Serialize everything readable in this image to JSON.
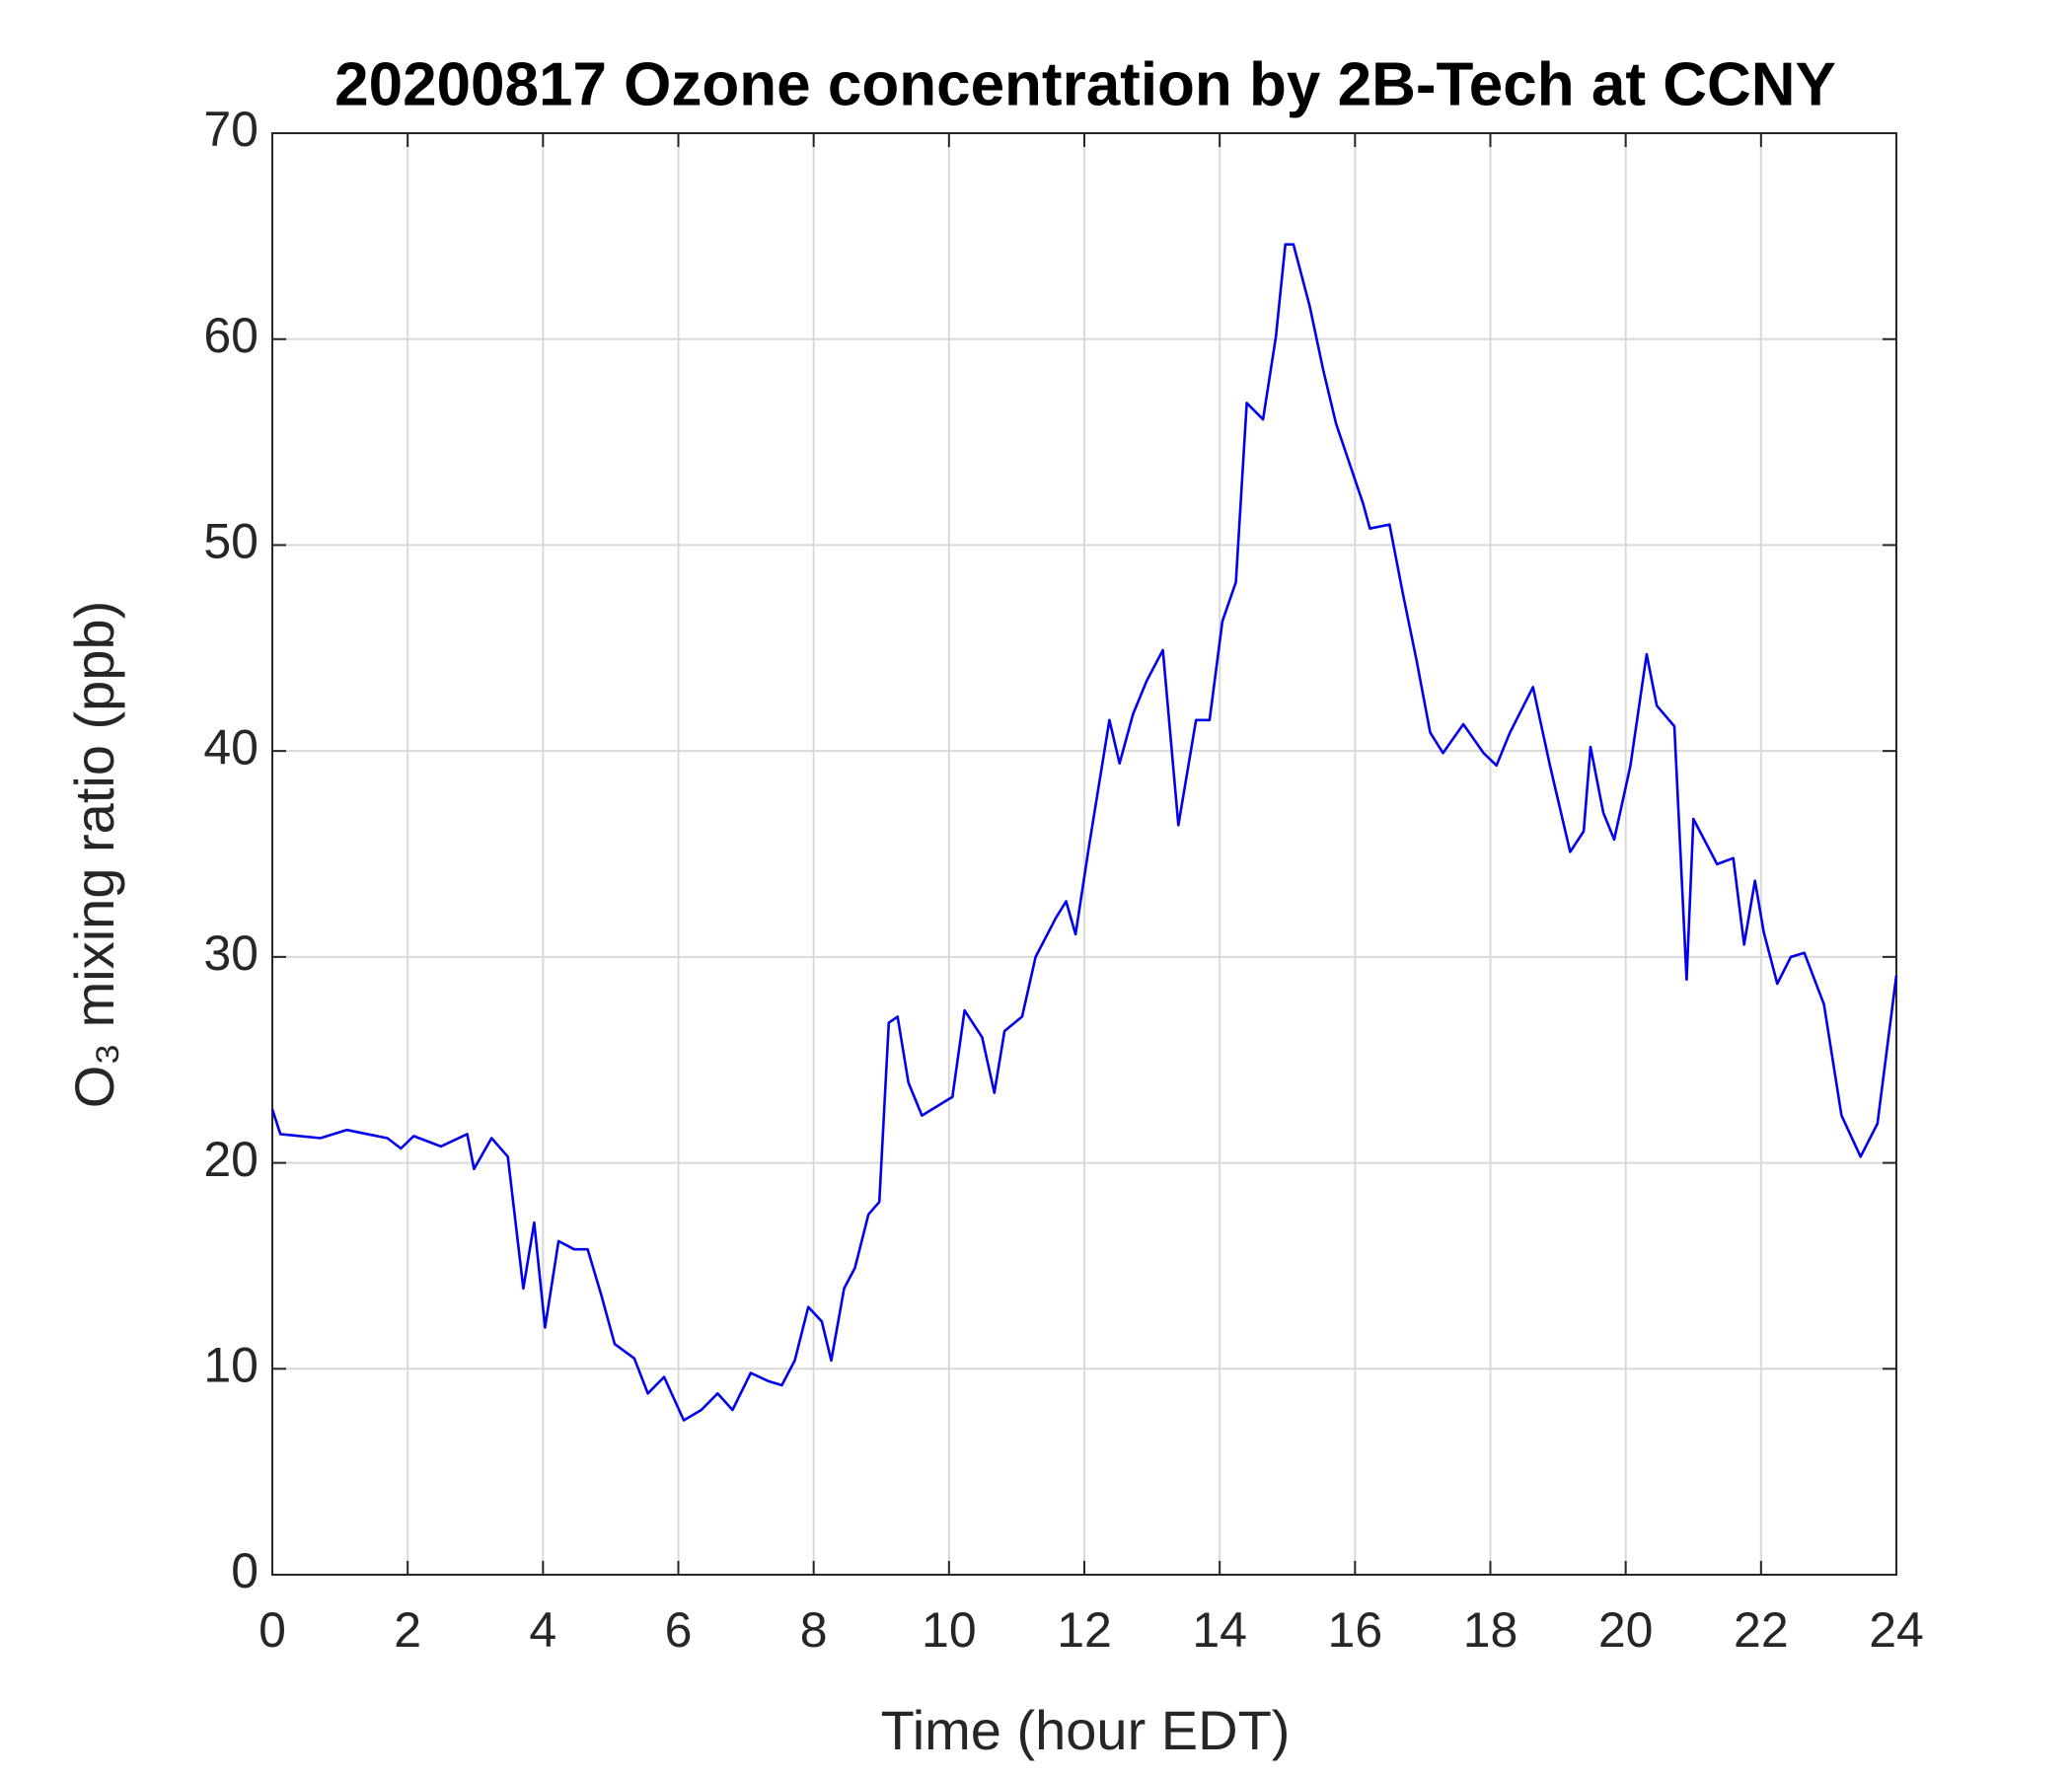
{
  "chart_data": {
    "type": "line",
    "title": "20200817 Ozone concentration by 2B-Tech at CCNY",
    "xlabel": "Time (hour EDT)",
    "ylabel": "O₃ mixing ratio (ppb)",
    "x": [
      0,
      0.12,
      0.71,
      1.1,
      1.7,
      1.9,
      2.09,
      2.49,
      2.88,
      2.98,
      3.24,
      3.48,
      3.71,
      3.87,
      4.03,
      4.23,
      4.46,
      4.66,
      4.86,
      5.06,
      5.35,
      5.55,
      5.79,
      6.08,
      6.34,
      6.58,
      6.8,
      7.07,
      7.33,
      7.53,
      7.72,
      7.92,
      8.12,
      8.26,
      8.45,
      8.61,
      8.81,
      8.97,
      9.11,
      9.24,
      9.4,
      9.6,
      9.9,
      10.05,
      10.23,
      10.49,
      10.67,
      10.82,
      11.08,
      11.28,
      11.58,
      11.73,
      11.87,
      12.07,
      12.37,
      12.52,
      12.72,
      12.92,
      13.16,
      13.39,
      13.65,
      13.85,
      14.04,
      14.24,
      14.4,
      14.64,
      14.83,
      14.97,
      15.09,
      15.33,
      15.53,
      15.72,
      16.12,
      16.22,
      16.51,
      16.71,
      16.91,
      17.11,
      17.3,
      17.6,
      17.9,
      18.09,
      18.29,
      18.63,
      18.88,
      19.18,
      19.38,
      19.48,
      19.67,
      19.83,
      20.07,
      20.31,
      20.46,
      20.72,
      20.9,
      21.0,
      21.16,
      21.35,
      21.59,
      21.75,
      21.91,
      22.04,
      22.24,
      22.44,
      22.64,
      22.93,
      23.19,
      23.47,
      23.72,
      24
    ],
    "series": [
      {
        "name": "O3",
        "color": "#0000ee",
        "values": [
          22.6,
          21.4,
          21.2,
          21.6,
          21.2,
          20.7,
          21.3,
          20.8,
          21.4,
          19.7,
          21.2,
          20.3,
          13.9,
          17.1,
          12.0,
          16.2,
          15.8,
          15.8,
          13.6,
          11.2,
          10.5,
          8.8,
          9.6,
          7.5,
          8.0,
          8.8,
          8.0,
          9.8,
          9.4,
          9.2,
          10.4,
          13.0,
          12.3,
          10.4,
          13.9,
          14.9,
          17.5,
          18.1,
          26.8,
          27.1,
          23.9,
          22.3,
          22.9,
          23.2,
          27.4,
          26.1,
          23.4,
          26.4,
          27.1,
          30.0,
          31.9,
          32.7,
          31.1,
          35.4,
          41.5,
          39.4,
          41.8,
          43.4,
          44.9,
          36.4,
          41.5,
          41.5,
          46.3,
          48.2,
          56.9,
          56.1,
          60.1,
          64.6,
          64.6,
          61.6,
          58.5,
          55.9,
          52.0,
          50.8,
          51.0,
          47.6,
          44.4,
          40.9,
          39.9,
          41.3,
          39.9,
          39.3,
          40.9,
          43.1,
          39.3,
          35.1,
          36.1,
          40.2,
          37.0,
          35.7,
          39.3,
          44.7,
          42.2,
          41.2,
          28.9,
          36.7,
          35.7,
          34.5,
          34.8,
          30.6,
          33.7,
          31.2,
          28.7,
          30.0,
          30.2,
          27.7,
          22.3,
          20.3,
          21.9,
          29.1
        ]
      }
    ],
    "xlim": [
      0,
      24
    ],
    "xticks": [
      0,
      2,
      4,
      6,
      8,
      10,
      12,
      14,
      16,
      18,
      20,
      22,
      24
    ],
    "ylim": [
      0,
      70
    ],
    "yticks": [
      0,
      10,
      20,
      30,
      40,
      50,
      60,
      70
    ],
    "grid": true
  }
}
